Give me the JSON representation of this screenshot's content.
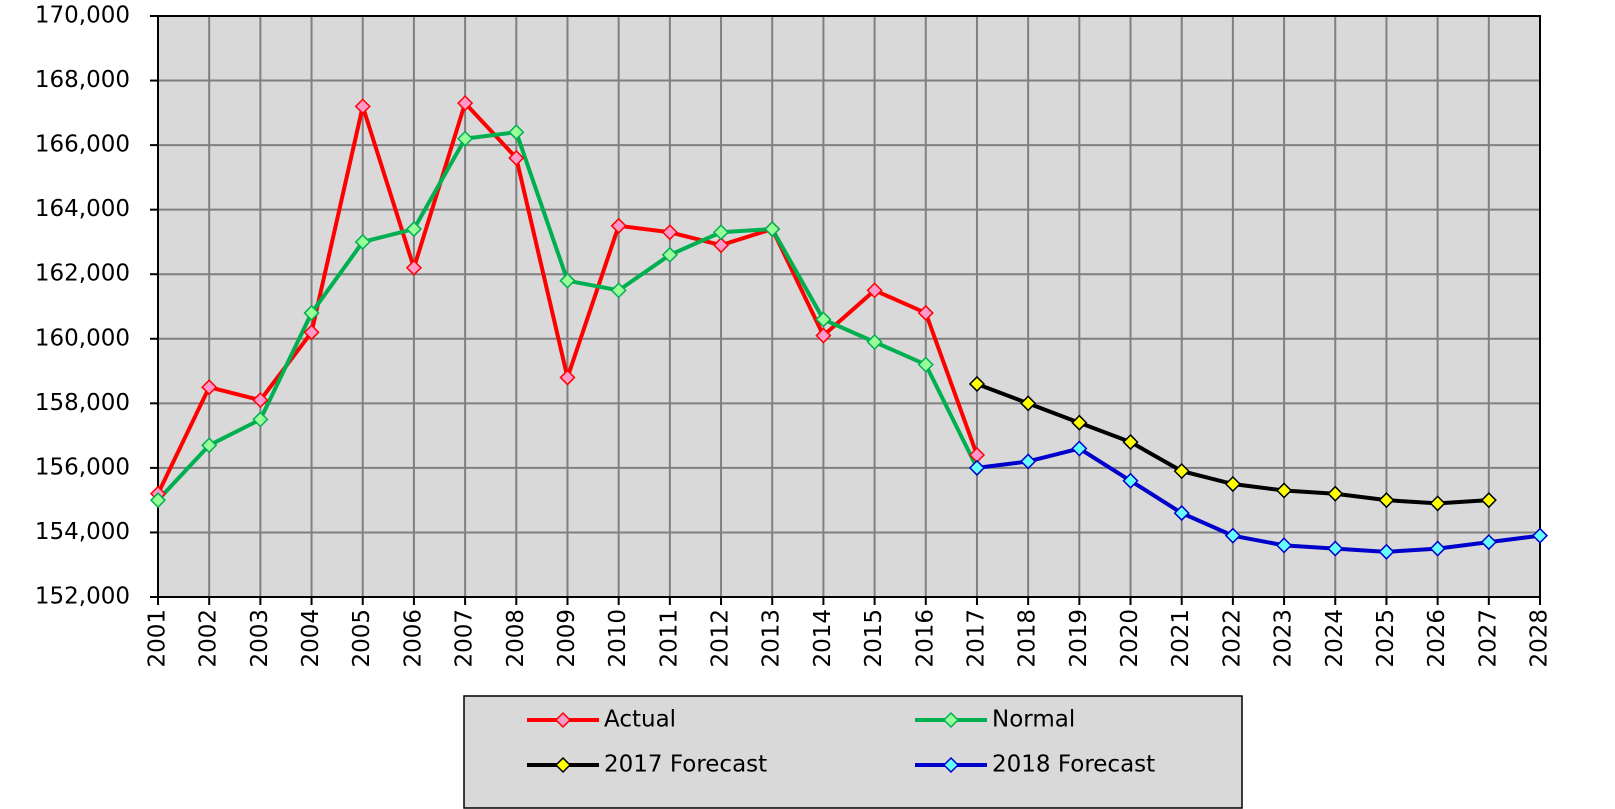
{
  "chart_data": {
    "type": "line",
    "categories": [
      "2001",
      "2002",
      "2003",
      "2004",
      "2005",
      "2006",
      "2007",
      "2008",
      "2009",
      "2010",
      "2011",
      "2012",
      "2013",
      "2014",
      "2015",
      "2016",
      "2017",
      "2018",
      "2019",
      "2020",
      "2021",
      "2022",
      "2023",
      "2024",
      "2025",
      "2026",
      "2027",
      "2028"
    ],
    "series": [
      {
        "name": "Actual",
        "color": "#ff0000",
        "marker_color": "#ff99cc",
        "values": [
          155200,
          158500,
          158100,
          160200,
          167200,
          162200,
          167300,
          165600,
          158800,
          163500,
          163300,
          162900,
          163400,
          160100,
          161500,
          160800,
          156400,
          null,
          null,
          null,
          null,
          null,
          null,
          null,
          null,
          null,
          null,
          null
        ]
      },
      {
        "name": "Normal",
        "color": "#00b050",
        "marker_color": "#99ff99",
        "values": [
          155000,
          156700,
          157500,
          160800,
          163000,
          163400,
          166200,
          166400,
          161800,
          161500,
          162600,
          163300,
          163400,
          160600,
          159900,
          159200,
          156000,
          null,
          null,
          null,
          null,
          null,
          null,
          null,
          null,
          null,
          null,
          null
        ]
      },
      {
        "name": "2017 Forecast",
        "color": "#000000",
        "marker_color": "#ffff00",
        "values": [
          null,
          null,
          null,
          null,
          null,
          null,
          null,
          null,
          null,
          null,
          null,
          null,
          null,
          null,
          null,
          null,
          158600,
          158000,
          157400,
          156800,
          155900,
          155500,
          155300,
          155200,
          155000,
          154900,
          155000,
          null
        ]
      },
      {
        "name": "2018 Forecast",
        "color": "#0000cc",
        "marker_color": "#66ffff",
        "values": [
          null,
          null,
          null,
          null,
          null,
          null,
          null,
          null,
          null,
          null,
          null,
          null,
          null,
          null,
          null,
          null,
          156000,
          156200,
          156600,
          155600,
          154600,
          153900,
          153600,
          153500,
          153400,
          153500,
          153700,
          153900
        ]
      }
    ],
    "ylim": [
      152000,
      170000
    ],
    "yticks": [
      {
        "value": 152000,
        "label": "152,000"
      },
      {
        "value": 154000,
        "label": "154,000"
      },
      {
        "value": 156000,
        "label": "156,000"
      },
      {
        "value": 158000,
        "label": "158,000"
      },
      {
        "value": 160000,
        "label": "160,000"
      },
      {
        "value": 162000,
        "label": "162,000"
      },
      {
        "value": 164000,
        "label": "164,000"
      },
      {
        "value": 166000,
        "label": "166,000"
      },
      {
        "value": 168000,
        "label": "168,000"
      },
      {
        "value": 170000,
        "label": "170,000"
      }
    ],
    "grid": true
  }
}
